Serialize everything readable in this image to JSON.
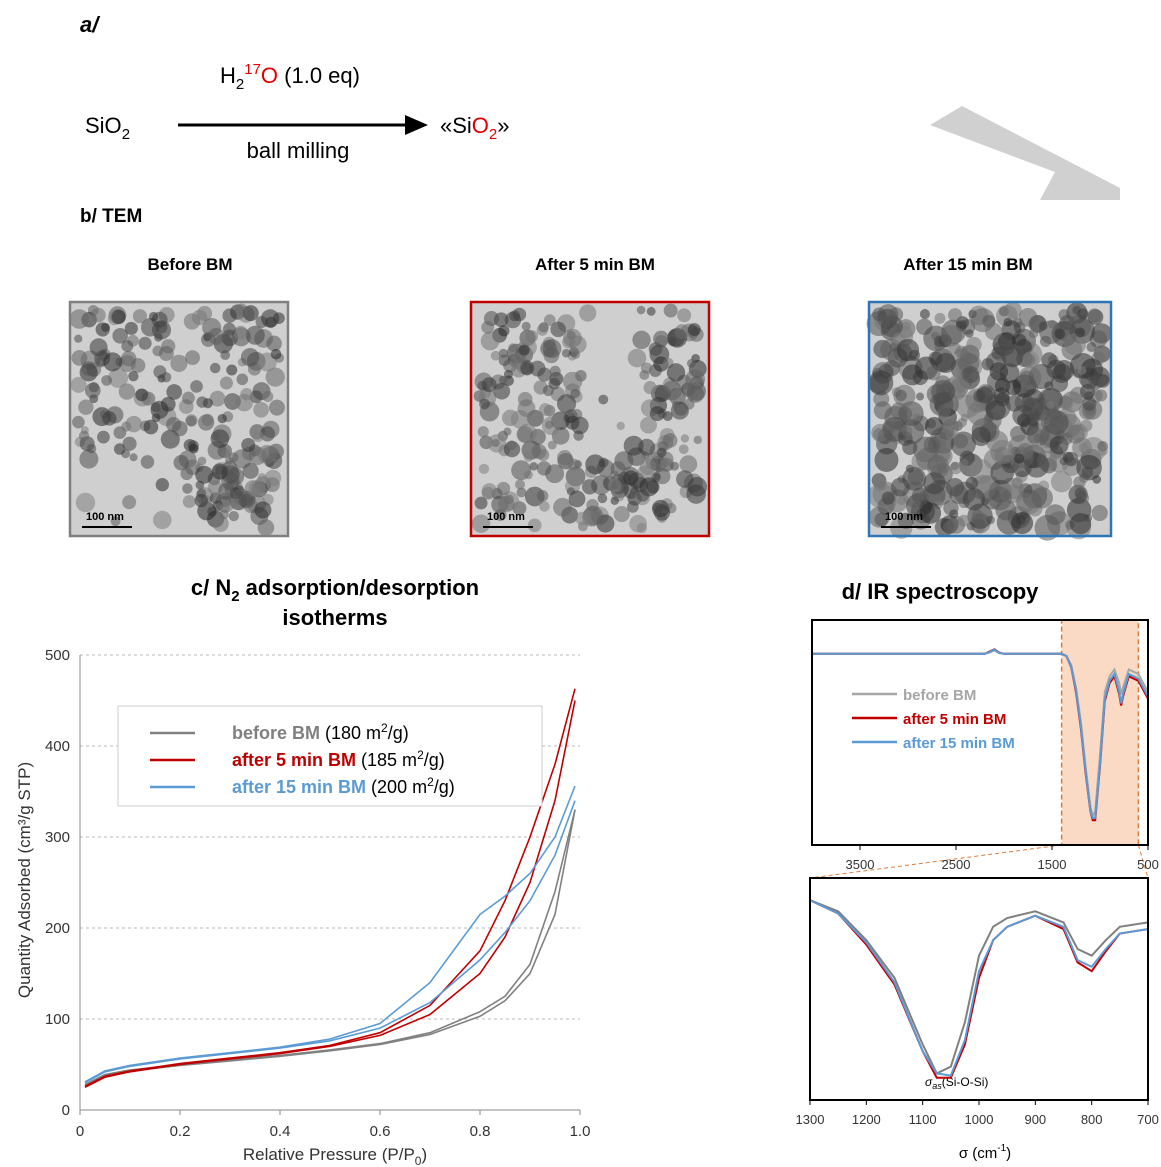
{
  "scheme": {
    "label": "a/",
    "reactant": [
      "SiO",
      "2"
    ],
    "reagent": [
      "H",
      "2",
      "17",
      "O",
      " (1.0 eq)"
    ],
    "conditions": "ball milling",
    "product": [
      "«Si",
      "O",
      "2",
      "»"
    ]
  },
  "tem": {
    "label": "b/ TEM",
    "images": [
      {
        "title": "Before BM",
        "scale_bar": "100 nm",
        "border": "#7f7f7f"
      },
      {
        "title": "After 5 min BM",
        "scale_bar": "100 nm",
        "border": "#c00000"
      },
      {
        "title": "After 15 min BM",
        "scale_bar": "100 nm",
        "border": "#2e75b6"
      }
    ]
  },
  "chart_data": [
    {
      "type": "line",
      "title": [
        "c/ N",
        "2",
        " adsorption/desorption",
        "isotherms"
      ],
      "xlabel": [
        "Relative Pressure (P/P",
        "0",
        ")"
      ],
      "ylabel": "Quantity Adsorbed (cm³/g STP)",
      "x": [
        0.01,
        0.05,
        0.1,
        0.2,
        0.3,
        0.4,
        0.5,
        0.6,
        0.7,
        0.8,
        0.85,
        0.9,
        0.95,
        0.99
      ],
      "series": [
        {
          "name": "before BM",
          "note": [
            " (180 m",
            "2",
            "/g)"
          ],
          "color": "#808080",
          "values": [
            27,
            38,
            43,
            49,
            54,
            59,
            65,
            72,
            83,
            103,
            120,
            150,
            215,
            330
          ],
          "desorption": [
            28,
            39,
            44,
            50,
            55,
            60,
            66,
            73,
            85,
            108,
            125,
            160,
            240,
            330
          ]
        },
        {
          "name": "after 5 min BM",
          "note": [
            " (185 m",
            "2",
            "/g)"
          ],
          "color": "#c00000",
          "values": [
            25,
            36,
            42,
            50,
            56,
            62,
            70,
            82,
            105,
            150,
            190,
            250,
            340,
            450
          ],
          "desorption": [
            26,
            37,
            43,
            51,
            57,
            63,
            71,
            85,
            115,
            175,
            230,
            300,
            380,
            463
          ]
        },
        {
          "name": "after 15 min BM",
          "note": [
            " (200 m",
            "2",
            "/g)"
          ],
          "color": "#5b9bd5",
          "values": [
            30,
            42,
            48,
            56,
            62,
            68,
            76,
            90,
            118,
            165,
            195,
            230,
            280,
            340
          ],
          "desorption": [
            31,
            43,
            49,
            57,
            63,
            69,
            78,
            95,
            140,
            215,
            235,
            260,
            300,
            356
          ]
        }
      ],
      "xlim": [
        0,
        1
      ],
      "ylim": [
        0,
        500
      ],
      "xticks": [
        0,
        0.2,
        0.4,
        0.6,
        0.8,
        {
          "value": 1,
          "label": "1.0"
        }
      ],
      "yticks": [
        0,
        100,
        200,
        300,
        400,
        500
      ],
      "grid": true,
      "legend": "upper left"
    },
    {
      "type": "line",
      "title": "d/ IR spectroscopy",
      "x": [
        4000,
        3500,
        3000,
        2500,
        2200,
        2150,
        2100,
        2050,
        2000,
        1500,
        1400,
        1350,
        1300,
        1250,
        1200,
        1150,
        1100,
        1075,
        1050,
        1000,
        950,
        900,
        850,
        800,
        780,
        760,
        700,
        600,
        500
      ],
      "series": [
        {
          "name": "before BM",
          "color": "#a6a6a6",
          "values": [
            85,
            85,
            85,
            85,
            85,
            85.5,
            86.5,
            85.3,
            85,
            85,
            85,
            84,
            80,
            70,
            55,
            35,
            17,
            13,
            15,
            40,
            68,
            75,
            78,
            72,
            67,
            70,
            78,
            76,
            68
          ]
        },
        {
          "name": "after 5 min BM",
          "color": "#c00000",
          "values": [
            85,
            85,
            85,
            85,
            85,
            86,
            87,
            85.5,
            85,
            85,
            85,
            84,
            79,
            68,
            52,
            32,
            15,
            11,
            11,
            35,
            64,
            72,
            75,
            67,
            62,
            66,
            75,
            73,
            65
          ]
        },
        {
          "name": "after 15 min BM",
          "color": "#5b9bd5",
          "values": [
            85,
            85,
            85,
            85,
            85,
            85.8,
            86.8,
            85.4,
            85,
            85,
            85,
            84,
            79,
            69,
            53,
            33,
            15,
            12,
            12,
            36,
            65,
            73,
            76,
            68,
            63,
            67,
            76,
            74,
            66
          ]
        }
      ],
      "xlim": [
        4000,
        500
      ],
      "ylim": [
        0,
        100
      ],
      "xticks": [
        3500,
        2500,
        1500,
        500
      ],
      "highlight": [
        1400,
        600
      ],
      "legend": "left"
    },
    {
      "type": "line",
      "x": [
        1300,
        1250,
        1200,
        1150,
        1100,
        1075,
        1050,
        1025,
        1000,
        975,
        950,
        900,
        850,
        825,
        800,
        775,
        750,
        700
      ],
      "series": [
        {
          "color": "#808080",
          "values": [
            90,
            85,
            72,
            55,
            25,
            12,
            15,
            35,
            65,
            78,
            82,
            85,
            80,
            68,
            65,
            72,
            78,
            80
          ]
        },
        {
          "color": "#c00000",
          "values": [
            90,
            84,
            70,
            52,
            22,
            10,
            10,
            25,
            55,
            72,
            78,
            83,
            77,
            62,
            58,
            67,
            75,
            77
          ]
        },
        {
          "color": "#5b9bd5",
          "values": [
            90,
            84,
            71,
            53,
            22,
            12,
            11,
            27,
            58,
            72,
            78,
            83,
            78,
            63,
            60,
            68,
            75,
            77
          ]
        }
      ],
      "xlim": [
        1300,
        700
      ],
      "ylim": [
        0,
        100
      ],
      "xticks": [
        1300,
        1200,
        1100,
        1000,
        900,
        800,
        700
      ],
      "annotation": [
        "σ",
        "as",
        "(Si-O-Si)"
      ],
      "xlabel": [
        "σ (cm",
        "-1",
        ")"
      ]
    }
  ]
}
